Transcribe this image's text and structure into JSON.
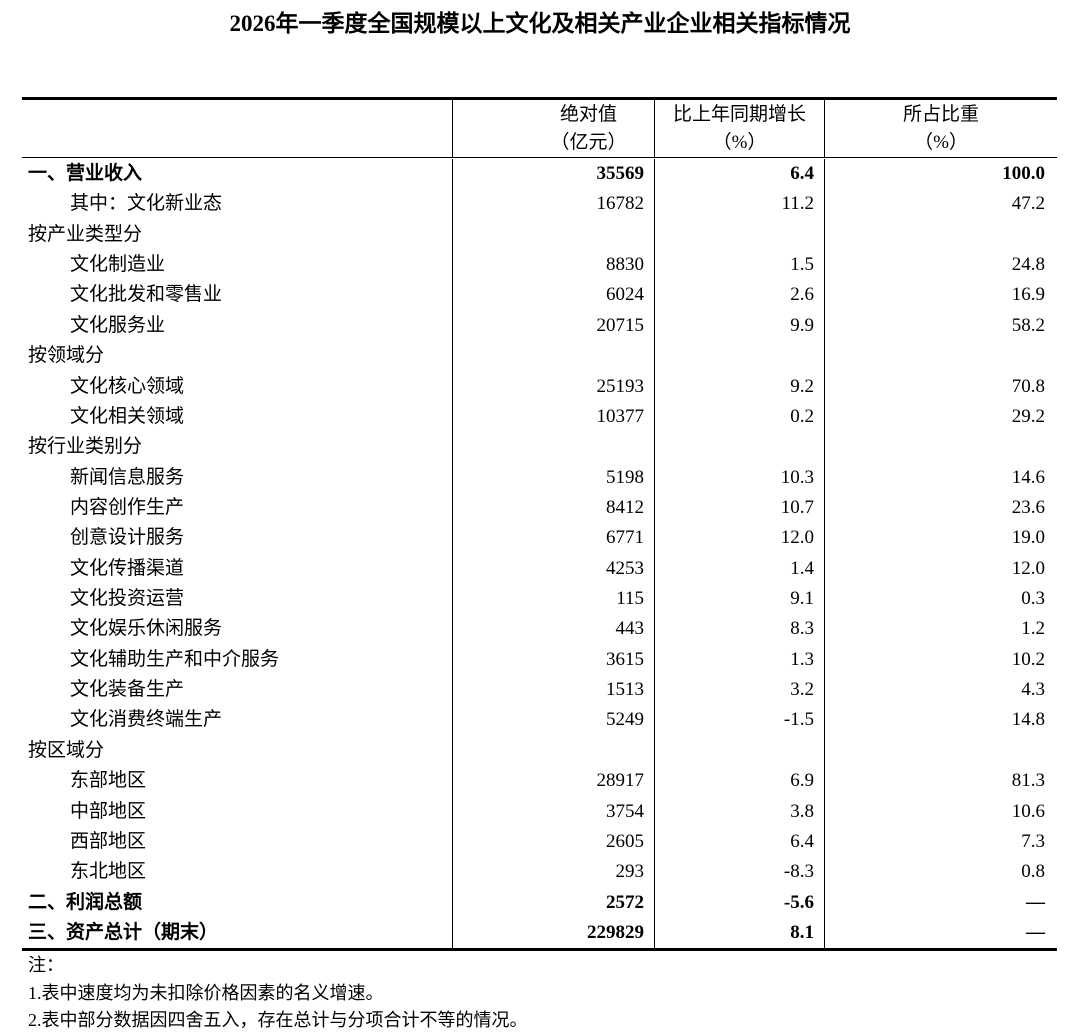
{
  "title": "2026年一季度全国规模以上文化及相关产业企业相关指标情况",
  "headers": [
    {
      "line1": "",
      "line2": ""
    },
    {
      "line1": "绝对值",
      "line2": "（亿元）"
    },
    {
      "line1": "比上年同期增长",
      "line2": "（%）"
    },
    {
      "line1": "所占比重",
      "line2": "（%）"
    }
  ],
  "rows": [
    {
      "label": "一、营业收入",
      "value": "35569",
      "growth": "6.4",
      "share": "100.0",
      "level": 0,
      "bold": true
    },
    {
      "label": "其中：文化新业态",
      "value": "16782",
      "growth": "11.2",
      "share": "47.2",
      "level": 2,
      "bold": false
    },
    {
      "label": "按产业类型分",
      "value": "",
      "growth": "",
      "share": "",
      "level": 0,
      "bold": false
    },
    {
      "label": "文化制造业",
      "value": "8830",
      "growth": "1.5",
      "share": "24.8",
      "level": 1,
      "bold": false
    },
    {
      "label": "文化批发和零售业",
      "value": "6024",
      "growth": "2.6",
      "share": "16.9",
      "level": 1,
      "bold": false
    },
    {
      "label": "文化服务业",
      "value": "20715",
      "growth": "9.9",
      "share": "58.2",
      "level": 1,
      "bold": false
    },
    {
      "label": "按领域分",
      "value": "",
      "growth": "",
      "share": "",
      "level": 0,
      "bold": false
    },
    {
      "label": "文化核心领域",
      "value": "25193",
      "growth": "9.2",
      "share": "70.8",
      "level": 1,
      "bold": false
    },
    {
      "label": "文化相关领域",
      "value": "10377",
      "growth": "0.2",
      "share": "29.2",
      "level": 1,
      "bold": false
    },
    {
      "label": "按行业类别分",
      "value": "",
      "growth": "",
      "share": "",
      "level": 0,
      "bold": false
    },
    {
      "label": "新闻信息服务",
      "value": "5198",
      "growth": "10.3",
      "share": "14.6",
      "level": 1,
      "bold": false
    },
    {
      "label": "内容创作生产",
      "value": "8412",
      "growth": "10.7",
      "share": "23.6",
      "level": 1,
      "bold": false
    },
    {
      "label": "创意设计服务",
      "value": "6771",
      "growth": "12.0",
      "share": "19.0",
      "level": 1,
      "bold": false
    },
    {
      "label": "文化传播渠道",
      "value": "4253",
      "growth": "1.4",
      "share": "12.0",
      "level": 1,
      "bold": false
    },
    {
      "label": "文化投资运营",
      "value": "115",
      "growth": "9.1",
      "share": "0.3",
      "level": 1,
      "bold": false
    },
    {
      "label": "文化娱乐休闲服务",
      "value": "443",
      "growth": "8.3",
      "share": "1.2",
      "level": 1,
      "bold": false
    },
    {
      "label": "文化辅助生产和中介服务",
      "value": "3615",
      "growth": "1.3",
      "share": "10.2",
      "level": 1,
      "bold": false
    },
    {
      "label": "文化装备生产",
      "value": "1513",
      "growth": "3.2",
      "share": "4.3",
      "level": 1,
      "bold": false
    },
    {
      "label": "文化消费终端生产",
      "value": "5249",
      "growth": "-1.5",
      "share": "14.8",
      "level": 1,
      "bold": false
    },
    {
      "label": "按区域分",
      "value": "",
      "growth": "",
      "share": "",
      "level": 0,
      "bold": false
    },
    {
      "label": "东部地区",
      "value": "28917",
      "growth": "6.9",
      "share": "81.3",
      "level": 1,
      "bold": false
    },
    {
      "label": "中部地区",
      "value": "3754",
      "growth": "3.8",
      "share": "10.6",
      "level": 1,
      "bold": false
    },
    {
      "label": "西部地区",
      "value": "2605",
      "growth": "6.4",
      "share": "7.3",
      "level": 1,
      "bold": false
    },
    {
      "label": "东北地区",
      "value": "293",
      "growth": "-8.3",
      "share": "0.8",
      "level": 1,
      "bold": false
    },
    {
      "label": "二、利润总额",
      "value": "2572",
      "growth": "-5.6",
      "share": "—",
      "level": 0,
      "bold": true
    },
    {
      "label": "三、资产总计（期末）",
      "value": "229829",
      "growth": "8.1",
      "share": "—",
      "level": 0,
      "bold": true
    }
  ],
  "notes": {
    "heading": "注：",
    "items": [
      "1.表中速度均为未扣除价格因素的名义增速。",
      "2.表中部分数据因四舍五入，存在总计与分项合计不等的情况。"
    ]
  }
}
